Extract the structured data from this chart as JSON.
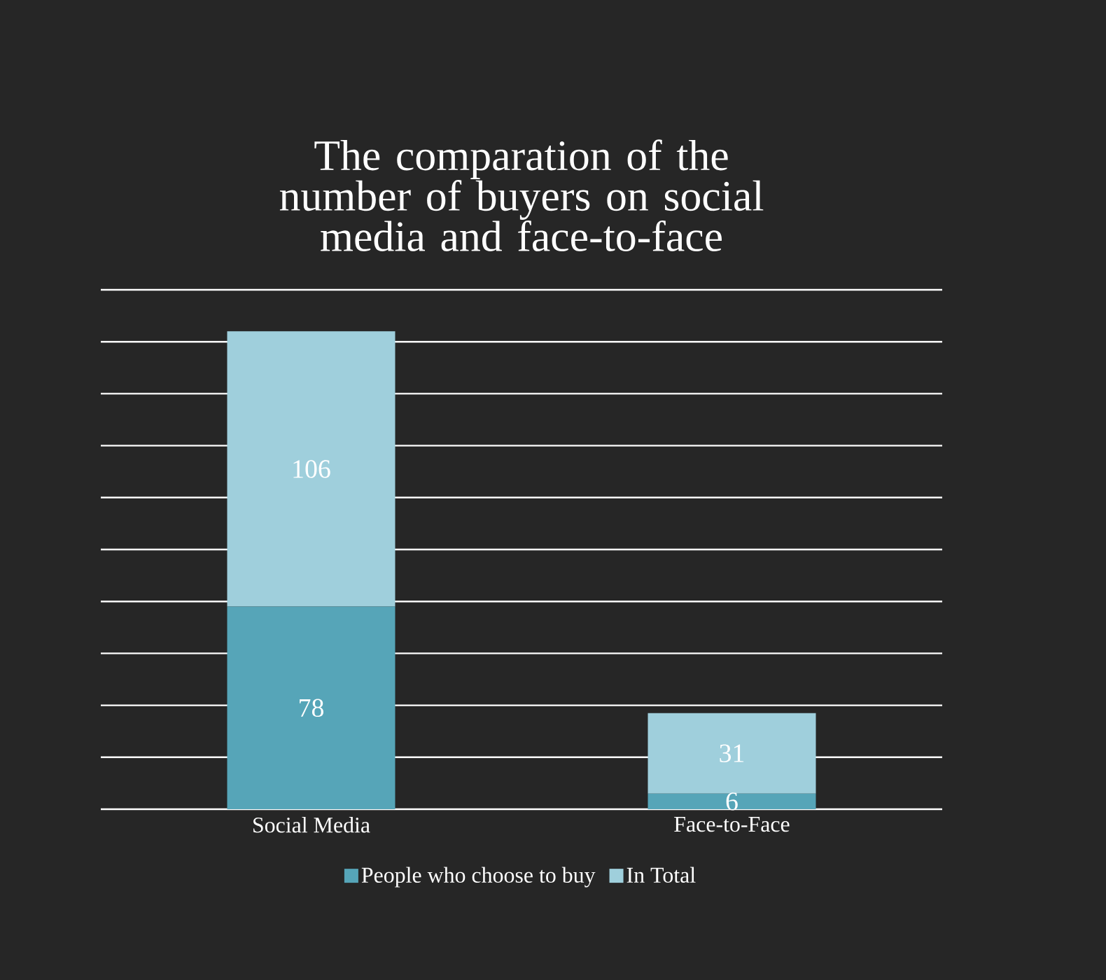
{
  "chart_data": {
    "type": "bar",
    "title": "The comparation of the number of buyers on social media and face-to-face",
    "categories": [
      "Social Media",
      "Face-to-Face"
    ],
    "series": [
      {
        "name": "People who choose to buy",
        "color": "#56a5b8",
        "values": [
          78,
          6
        ]
      },
      {
        "name": "In Total",
        "color": "#9fcfdc",
        "values": [
          106,
          31
        ]
      }
    ],
    "stacked": true,
    "data_labels": true,
    "ylim": [
      0,
      200
    ],
    "yticks": [
      {
        "value": 0,
        "label": null
      },
      {
        "value": 20,
        "label": null
      },
      {
        "value": 40,
        "label": null
      },
      {
        "value": 60,
        "label": null
      },
      {
        "value": 80,
        "label": null
      },
      {
        "value": 100,
        "label": null
      },
      {
        "value": 120,
        "label": null
      },
      {
        "value": 140,
        "label": null
      },
      {
        "value": 160,
        "label": null
      },
      {
        "value": 180,
        "label": null
      },
      {
        "value": 200,
        "label": null
      }
    ],
    "tick_labels": "x",
    "grid": "y",
    "legend": "bottom"
  }
}
